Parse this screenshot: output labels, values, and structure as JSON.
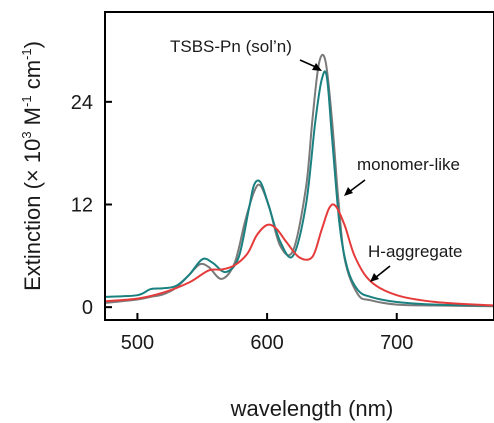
{
  "chart_data": {
    "type": "line",
    "title": "",
    "xlabel": "wavelength (nm)",
    "ylabel_parts": {
      "pre": "Extinction (× 10",
      "exp1": "3",
      "mid": " M",
      "exp2": "-1",
      "mid2": " cm",
      "exp3": "-1",
      "post": ")"
    },
    "xlim": [
      475,
      775
    ],
    "ylim": [
      -1.5,
      34.5
    ],
    "xticks": [
      {
        "v": 500,
        "label": "500"
      },
      {
        "v": 600,
        "label": "600"
      },
      {
        "v": 700,
        "label": "700"
      }
    ],
    "yticks": [
      {
        "v": 0,
        "label": "0"
      },
      {
        "v": 12,
        "label": "12"
      },
      {
        "v": 24,
        "label": "24"
      }
    ],
    "grid": false,
    "series": [
      {
        "name": "TSBS-Pn (sol'n)",
        "color": "#7a7a7a",
        "x": [
          475,
          500,
          510,
          520,
          530,
          540,
          548,
          555,
          565,
          575,
          583,
          590,
          595,
          602,
          610,
          620,
          630,
          635,
          640,
          645,
          650,
          655,
          660,
          670,
          680,
          700,
          730,
          775
        ],
        "y": [
          0.5,
          0.9,
          1.2,
          1.5,
          2.3,
          3.8,
          5.0,
          4.7,
          3.3,
          5.2,
          10.0,
          13.5,
          14.2,
          11.5,
          7.2,
          6.6,
          14.0,
          22.0,
          28.5,
          28.8,
          22.0,
          12.5,
          5.5,
          1.5,
          0.8,
          0.3,
          0.2,
          0.1
        ]
      },
      {
        "name": "monomer-like",
        "color": "#1a8080",
        "x": [
          475,
          500,
          510,
          520,
          530,
          540,
          550,
          558,
          568,
          578,
          586,
          590,
          595,
          601,
          610,
          620,
          630,
          637,
          642,
          646,
          650,
          656,
          662,
          670,
          680,
          700,
          730,
          775
        ],
        "y": [
          1.2,
          1.4,
          2.1,
          2.2,
          2.5,
          3.8,
          5.6,
          5.2,
          4.1,
          5.8,
          11.5,
          14.3,
          14.6,
          12.0,
          7.7,
          6.0,
          12.0,
          21.5,
          26.5,
          27.0,
          20.0,
          9.5,
          4.5,
          2.0,
          1.2,
          0.6,
          0.3,
          0.2
        ]
      },
      {
        "name": "H-aggregate",
        "color": "#e53b3b",
        "x": [
          475,
          500,
          520,
          540,
          555,
          565,
          575,
          585,
          592,
          600,
          607,
          615,
          625,
          635,
          642,
          648,
          653,
          660,
          668,
          680,
          700,
          730,
          775
        ],
        "y": [
          0.7,
          1.0,
          1.7,
          2.9,
          4.3,
          4.4,
          4.9,
          6.3,
          8.4,
          9.6,
          9.2,
          7.6,
          5.8,
          5.9,
          9.0,
          11.6,
          11.8,
          9.5,
          5.8,
          3.0,
          1.4,
          0.6,
          0.2
        ]
      }
    ],
    "annotations": [
      {
        "text": "TSBS-Pn (sol’n)",
        "series": 0
      },
      {
        "text": "monomer-like",
        "series": 1
      },
      {
        "text": "H-aggregate",
        "series": 2
      }
    ]
  }
}
